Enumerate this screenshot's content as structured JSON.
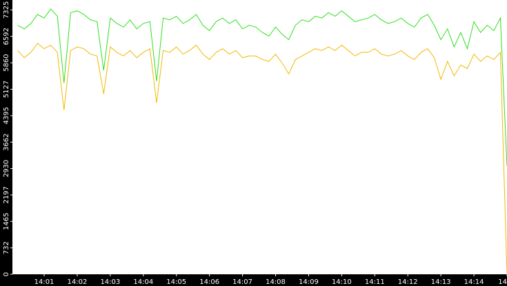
{
  "chart_data": {
    "type": "line",
    "x": [
      0.2,
      0.4,
      0.6,
      0.8,
      1.0,
      1.2,
      1.4,
      1.6,
      1.8,
      2.0,
      2.2,
      2.4,
      2.6,
      2.8,
      3.0,
      3.2,
      3.4,
      3.6,
      3.8,
      4.0,
      4.2,
      4.4,
      4.6,
      4.8,
      5.0,
      5.2,
      5.4,
      5.6,
      5.8,
      6.0,
      6.2,
      6.4,
      6.6,
      6.8,
      7.0,
      7.2,
      7.4,
      7.6,
      7.8,
      8.0,
      8.2,
      8.4,
      8.6,
      8.8,
      9.0,
      9.2,
      9.4,
      9.6,
      9.8,
      10.0,
      10.2,
      10.4,
      10.6,
      10.8,
      11.0,
      11.2,
      11.4,
      11.6,
      11.8,
      12.0,
      12.2,
      12.4,
      12.6,
      12.8,
      13.0,
      13.2,
      13.4,
      13.6,
      13.8,
      14.0,
      14.2,
      14.4,
      14.6,
      14.8,
      15.0
    ],
    "series": [
      {
        "color": "#f2b800",
        "values": [
          6200,
          6000,
          6150,
          6400,
          6250,
          6350,
          6150,
          4550,
          6200,
          6300,
          6250,
          6100,
          6050,
          5000,
          6300,
          6150,
          6050,
          6200,
          6000,
          6150,
          6250,
          4750,
          6200,
          6150,
          6300,
          6100,
          6200,
          6350,
          6100,
          5950,
          6150,
          6250,
          6100,
          6200,
          6000,
          6050,
          6050,
          5950,
          5900,
          6100,
          5850,
          5550,
          5950,
          6050,
          6150,
          6250,
          6200,
          6300,
          6200,
          6350,
          6200,
          6050,
          6150,
          6150,
          6250,
          6100,
          6050,
          6100,
          6200,
          6050,
          5950,
          6150,
          6250,
          6000,
          5400,
          5900,
          5500,
          5800,
          5700,
          6100,
          5900,
          6050,
          5950,
          6150,
          0
        ]
      },
      {
        "color": "#2ee01c",
        "values": [
          6900,
          6800,
          6950,
          7200,
          7100,
          7350,
          7150,
          5300,
          7250,
          7300,
          7200,
          7050,
          7000,
          5650,
          7100,
          6950,
          6850,
          7050,
          6800,
          6950,
          7000,
          5350,
          7100,
          7050,
          7150,
          6950,
          7050,
          7200,
          6900,
          6750,
          7000,
          7100,
          6950,
          7050,
          6800,
          6900,
          6850,
          6700,
          6600,
          6850,
          6650,
          6500,
          6900,
          7050,
          7000,
          7150,
          7100,
          7250,
          7150,
          7300,
          7150,
          7000,
          7050,
          7100,
          7200,
          7050,
          6950,
          7000,
          7100,
          6950,
          6850,
          7100,
          7200,
          6900,
          6500,
          6800,
          6300,
          6700,
          6250,
          7000,
          6700,
          6900,
          6750,
          7100,
          3000
        ]
      }
    ],
    "xlim": [
      0.04,
      15
    ],
    "xticks": [
      {
        "value": 1,
        "label": "14:01"
      },
      {
        "value": 2,
        "label": "14:02"
      },
      {
        "value": 3,
        "label": "14:03"
      },
      {
        "value": 4,
        "label": "14:04"
      },
      {
        "value": 5,
        "label": "14:05"
      },
      {
        "value": 6,
        "label": "14:06"
      },
      {
        "value": 7,
        "label": "14:07"
      },
      {
        "value": 8,
        "label": "14:08"
      },
      {
        "value": 9,
        "label": "14:09"
      },
      {
        "value": 10,
        "label": "14:10"
      },
      {
        "value": 11,
        "label": "14:11"
      },
      {
        "value": 12,
        "label": "14:12"
      },
      {
        "value": 13,
        "label": "14:13"
      },
      {
        "value": 14,
        "label": "14:14"
      },
      {
        "value": 15,
        "label": "14"
      }
    ],
    "ylim": [
      0,
      7600
    ],
    "yticks": [
      0,
      732,
      1465,
      2197,
      2930,
      3662,
      4395,
      5127,
      5860,
      6592,
      7325
    ]
  }
}
